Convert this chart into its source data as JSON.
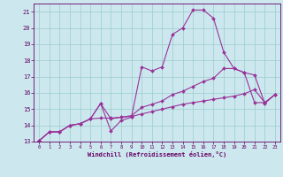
{
  "xlabel": "Windchill (Refroidissement éolien,°C)",
  "bg_color": "#cce8ee",
  "line_color": "#993399",
  "grid_color": "#99cccc",
  "axis_color": "#660066",
  "tick_label_color": "#660066",
  "xlim": [
    -0.5,
    23.5
  ],
  "ylim": [
    13.0,
    21.5
  ],
  "yticks": [
    13,
    14,
    15,
    16,
    17,
    18,
    19,
    20,
    21
  ],
  "xticks": [
    0,
    1,
    2,
    3,
    4,
    5,
    6,
    7,
    8,
    9,
    10,
    11,
    12,
    13,
    14,
    15,
    16,
    17,
    18,
    19,
    20,
    21,
    22,
    23
  ],
  "lines": [
    {
      "x": [
        0,
        1,
        2,
        3,
        4,
        5,
        6,
        7,
        8,
        9,
        10,
        11,
        12,
        13,
        14,
        15,
        16,
        17,
        18,
        19,
        20,
        21,
        22,
        23
      ],
      "y": [
        13.05,
        13.6,
        13.6,
        14.0,
        14.1,
        14.4,
        15.35,
        13.65,
        14.3,
        14.5,
        17.6,
        17.35,
        17.6,
        19.6,
        20.0,
        21.1,
        21.1,
        20.6,
        18.5,
        17.5,
        17.25,
        17.1,
        15.35,
        15.9
      ]
    },
    {
      "x": [
        0,
        1,
        2,
        3,
        4,
        5,
        6,
        7,
        8,
        9,
        10,
        11,
        12,
        13,
        14,
        15,
        16,
        17,
        18,
        19,
        20,
        21,
        22,
        23
      ],
      "y": [
        13.05,
        13.6,
        13.6,
        14.0,
        14.1,
        14.4,
        14.45,
        14.45,
        14.5,
        14.55,
        14.7,
        14.85,
        15.0,
        15.15,
        15.3,
        15.4,
        15.5,
        15.6,
        15.7,
        15.8,
        15.95,
        16.2,
        15.4,
        15.9
      ]
    },
    {
      "x": [
        0,
        1,
        2,
        3,
        4,
        5,
        6,
        7,
        8,
        9,
        10,
        11,
        12,
        13,
        14,
        15,
        16,
        17,
        18,
        19,
        20,
        21,
        22,
        23
      ],
      "y": [
        13.05,
        13.6,
        13.6,
        14.0,
        14.1,
        14.4,
        15.35,
        14.4,
        14.5,
        14.6,
        15.1,
        15.3,
        15.5,
        15.9,
        16.1,
        16.4,
        16.7,
        16.9,
        17.5,
        17.5,
        17.25,
        15.4,
        15.4,
        15.9
      ]
    }
  ]
}
